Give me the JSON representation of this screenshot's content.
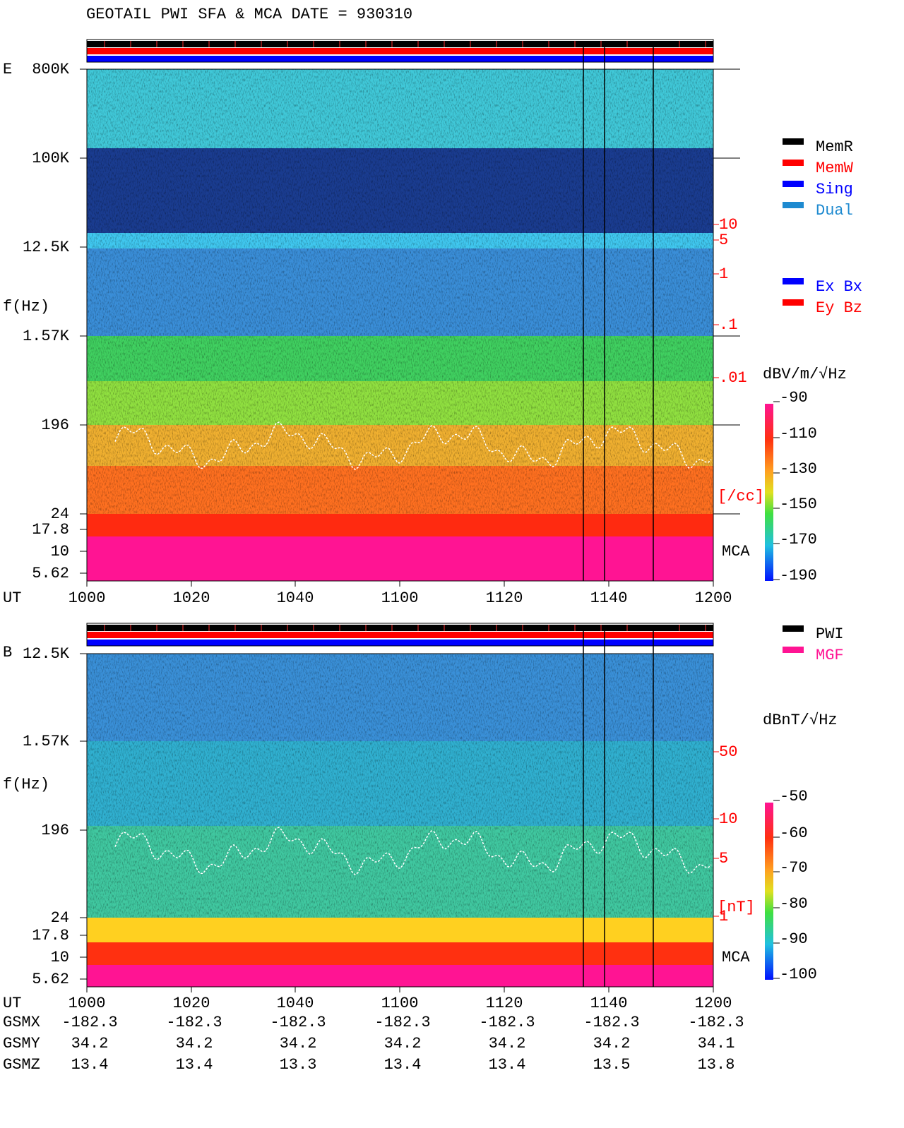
{
  "header": {
    "title": "GEOTAIL  PWI SFA & MCA   DATE = 930310"
  },
  "panels": [
    {
      "label": "E",
      "ylabel": "f(Hz)",
      "freq_ticks": [
        "800K",
        "100K",
        "12.5K",
        "1.57K",
        "196",
        "24",
        "17.8",
        "10",
        "5.62"
      ],
      "density_ticks": [
        "10",
        "5",
        "1",
        ".1",
        ".01"
      ],
      "density_unit": "[/cc]",
      "mca": "MCA",
      "colorbar_unit": "dBV/m/√Hz",
      "colorbar_ticks": [
        -90,
        -110,
        -130,
        -150,
        -170,
        -190
      ],
      "x_label": "UT",
      "x_ticks": [
        "1000",
        "1020",
        "1040",
        "1100",
        "1120",
        "1140",
        "1200"
      ]
    },
    {
      "label": "B",
      "ylabel": "f(Hz)",
      "freq_ticks": [
        "12.5K",
        "1.57K",
        "196",
        "24",
        "17.8",
        "10",
        "5.62"
      ],
      "density_ticks": [
        "50",
        "10",
        "5",
        "1"
      ],
      "density_unit": "[nT]",
      "mca": "MCA",
      "colorbar_unit": "dBnT/√Hz",
      "colorbar_ticks": [
        -50,
        -60,
        -70,
        -80,
        -90,
        -100
      ],
      "x_label": "UT",
      "x_ticks": [
        "1000",
        "1020",
        "1040",
        "1100",
        "1120",
        "1140",
        "1200"
      ]
    }
  ],
  "legend_mode": [
    {
      "label": "MemR",
      "color": "#000000"
    },
    {
      "label": "MemW",
      "color": "#ff0000"
    },
    {
      "label": "Sing",
      "color": "#0000ff"
    },
    {
      "label": "Dual",
      "color": "#1e8ad0"
    }
  ],
  "legend_component": [
    {
      "label": "Ex Bx",
      "color": "#0000ff"
    },
    {
      "label": "Ey Bz",
      "color": "#ff0000"
    }
  ],
  "legend_source": [
    {
      "label": "PWI",
      "color": "#000000"
    },
    {
      "label": "MGF",
      "color": "#ff1493"
    }
  ],
  "orbit": {
    "rows": [
      {
        "label": "GSMX",
        "values": [
          -182.3,
          -182.3,
          -182.3,
          -182.3,
          -182.3,
          -182.3,
          -182.3
        ]
      },
      {
        "label": "GSMY",
        "values": [
          34.2,
          34.2,
          34.2,
          34.2,
          34.2,
          34.2,
          34.1
        ]
      },
      {
        "label": "GSMZ",
        "values": [
          13.4,
          13.4,
          13.3,
          13.4,
          13.4,
          13.5,
          13.8
        ]
      }
    ]
  }
}
